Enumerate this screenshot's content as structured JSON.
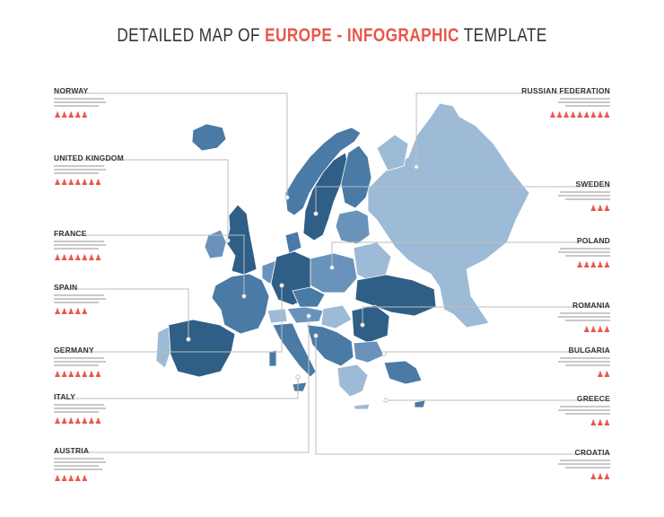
{
  "title": {
    "part1": "DETAILED MAP OF ",
    "part2": "EUROPE - INFOGRAPHIC",
    "part3": " TEMPLATE"
  },
  "colors": {
    "accent": "#e8574b",
    "dark": "#2f5f86",
    "mid": "#4a7aa6",
    "light": "#9dbbd6",
    "line": "#bdbdbd",
    "text": "#333333"
  },
  "icons": {
    "person": "person-icon"
  },
  "left_labels": [
    {
      "name": "NORWAY"
    },
    {
      "name": "UNITED KINGDOM"
    },
    {
      "name": "FRANCE"
    },
    {
      "name": "SPAIN"
    },
    {
      "name": "GERMANY"
    },
    {
      "name": "ITALY"
    },
    {
      "name": "AUSTRIA"
    }
  ],
  "right_labels": [
    {
      "name": "RUSSIAN FEDERATION"
    },
    {
      "name": "SWEDEN"
    },
    {
      "name": "POLAND"
    },
    {
      "name": "ROMANIA"
    },
    {
      "name": "BULGARIA"
    },
    {
      "name": "GREECE"
    },
    {
      "name": "CROATIA"
    }
  ]
}
